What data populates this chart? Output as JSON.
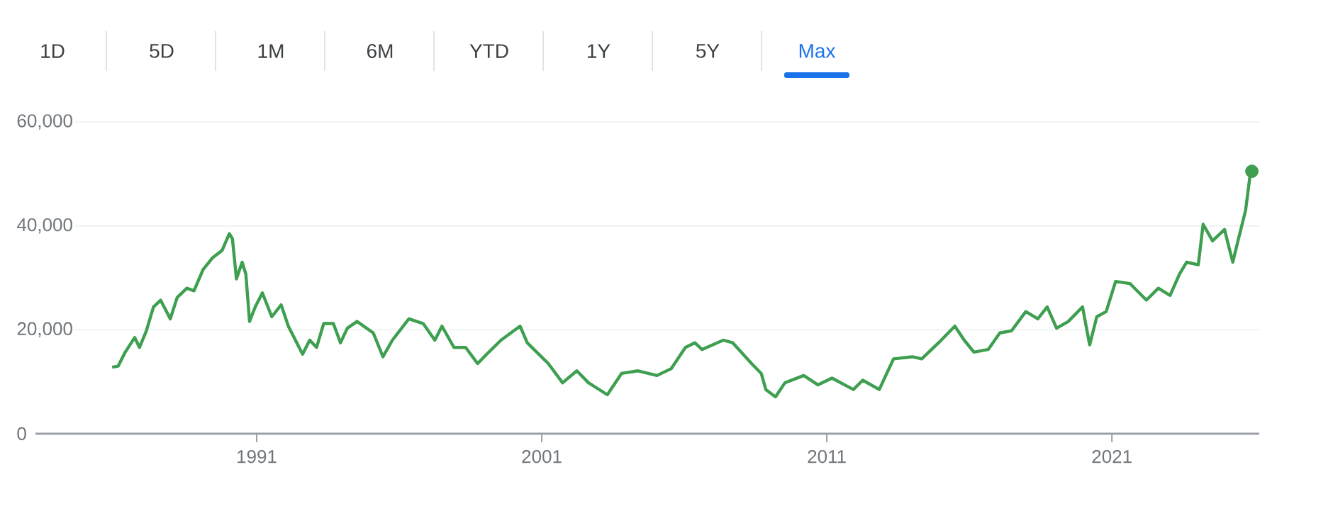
{
  "chart_data": {
    "type": "line",
    "annotations": [
      "1D",
      "5D",
      "1M",
      "6M",
      "YTD",
      "1Y",
      "5Y",
      "Max"
    ],
    "series": [
      {
        "color": "#3d9f4f",
        "x": [
          1985.93,
          1986.14,
          1986.39,
          1986.72,
          1986.89,
          1987.13,
          1987.38,
          1987.63,
          1987.8,
          1987.97,
          1988.21,
          1988.55,
          1988.8,
          1989.12,
          1989.46,
          1989.79,
          1990.04,
          1990.15,
          1990.29,
          1990.49,
          1990.62,
          1990.75,
          1990.95,
          1991.2,
          1991.53,
          1991.86,
          1992.11,
          1992.61,
          1992.86,
          1993.1,
          1993.35,
          1993.69,
          1993.94,
          1994.18,
          1994.52,
          1995.09,
          1995.43,
          1995.76,
          1996.34,
          1996.84,
          1997.25,
          1997.5,
          1997.92,
          1998.33,
          1998.75,
          1999.07,
          1999.57,
          2000.24,
          2000.49,
          2001.23,
          2001.73,
          2002.23,
          2002.64,
          2003.3,
          2003.8,
          2004.38,
          2005.04,
          2005.54,
          2006.04,
          2006.37,
          2006.62,
          2007.37,
          2007.7,
          2008.36,
          2008.7,
          2008.86,
          2009.2,
          2009.53,
          2010.19,
          2010.69,
          2011.18,
          2011.93,
          2012.26,
          2012.84,
          2013.34,
          2014.0,
          2014.33,
          2014.92,
          2015.49,
          2015.82,
          2016.16,
          2016.66,
          2017.07,
          2017.48,
          2017.98,
          2018.4,
          2018.73,
          2019.06,
          2019.47,
          2019.97,
          2020.22,
          2020.47,
          2020.8,
          2021.13,
          2021.63,
          2022.21,
          2022.63,
          2023.04,
          2023.37,
          2023.62,
          2024.03,
          2024.2,
          2024.53,
          2024.95,
          2025.24,
          2025.44,
          2025.69,
          2025.86
        ],
        "values": [
          12800,
          13000,
          15700,
          18500,
          16600,
          19800,
          24400,
          25700,
          23900,
          22100,
          26200,
          28000,
          27500,
          31600,
          33900,
          35300,
          38500,
          37500,
          29800,
          33000,
          30700,
          21600,
          24400,
          27100,
          22500,
          24800,
          20700,
          15300,
          18000,
          16600,
          21200,
          21200,
          17500,
          20300,
          21600,
          19400,
          14800,
          18000,
          22100,
          21200,
          18000,
          20700,
          16600,
          16600,
          13500,
          15300,
          18000,
          20700,
          17500,
          13500,
          9800,
          12100,
          9800,
          7500,
          11600,
          12100,
          11200,
          12500,
          16600,
          17500,
          16200,
          18000,
          17500,
          13500,
          11600,
          8500,
          7100,
          9800,
          11200,
          9400,
          10700,
          8500,
          10300,
          8500,
          14400,
          14800,
          14400,
          17500,
          20700,
          18000,
          15700,
          16200,
          19400,
          19800,
          23500,
          22100,
          24400,
          20300,
          21600,
          24400,
          17100,
          22500,
          23500,
          29300,
          28900,
          25700,
          28000,
          26600,
          30700,
          33000,
          32500,
          40300,
          37100,
          39300,
          33000,
          37500,
          43000,
          50300
        ]
      },
      {
        "type": "scatter",
        "color": "#3d9f4f",
        "x": [
          2025.91
        ],
        "values": [
          50500
        ]
      }
    ],
    "xlim": [
      1983.24,
      2026.17
    ],
    "ylim": [
      0,
      60000
    ],
    "xticks": [
      1991,
      2001,
      2011,
      2021
    ],
    "yticks": [
      0,
      {
        "value": 20000,
        "label": "20,000"
      },
      {
        "value": 40000,
        "label": "40,000"
      },
      {
        "value": 60000,
        "label": "60,000"
      }
    ],
    "grid": "y"
  }
}
